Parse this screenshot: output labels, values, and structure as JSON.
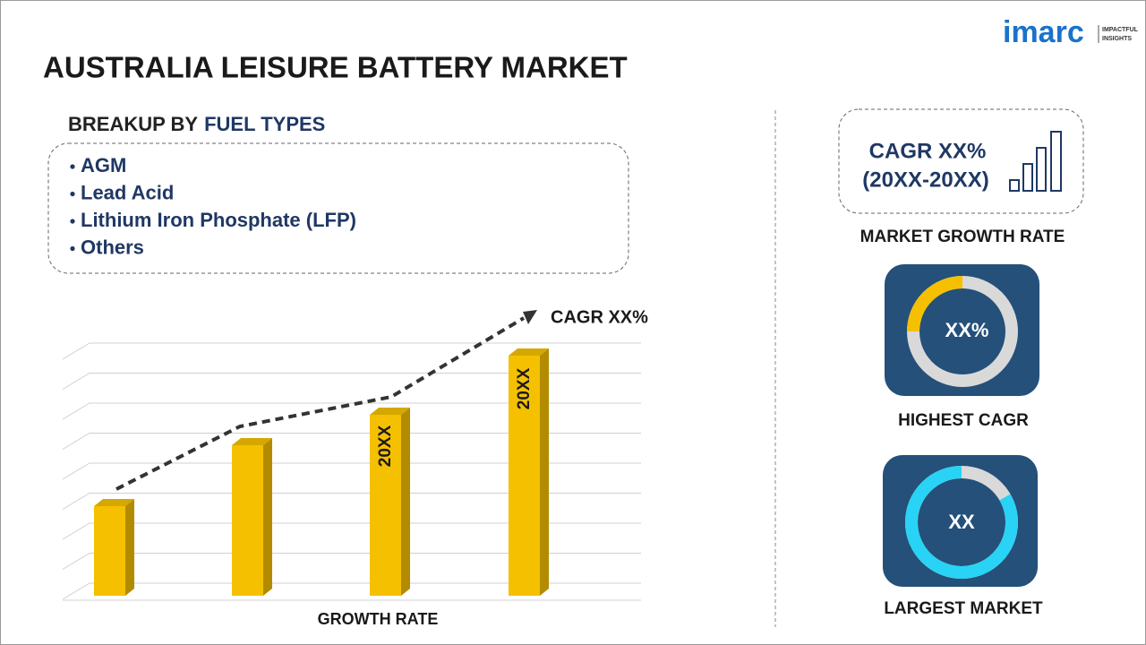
{
  "header": {
    "title": "AUSTRALIA LEISURE BATTERY MARKET",
    "logo": "imarc",
    "logo_tagline": [
      "IMPACTFUL",
      "INSIGHTS"
    ]
  },
  "breakup": {
    "label": "BREAKUP BY",
    "highlight": "FUEL TYPES",
    "items": [
      "AGM",
      "Lead Acid",
      "Lithium Iron Phosphate (LFP)",
      "Others"
    ]
  },
  "growth_chart": {
    "trend_label": "CAGR XX%",
    "bar_labels": [
      "20XX",
      "20XX"
    ],
    "axis_label": "GROWTH RATE"
  },
  "sidebar": {
    "cagr_box": {
      "line1": "CAGR XX%",
      "line2": "(20XX-20XX)",
      "caption": "MARKET GROWTH RATE"
    },
    "highest": {
      "value": "XX%",
      "caption": "HIGHEST CAGR"
    },
    "largest": {
      "value": "XX",
      "caption": "LARGEST MARKET"
    }
  }
}
